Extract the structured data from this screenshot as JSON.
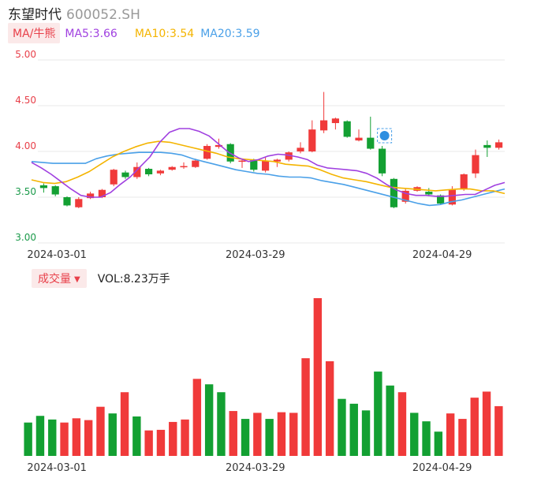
{
  "header": {
    "name": "东望时代",
    "code": "600052.SH"
  },
  "indicators": {
    "badge": "MA/牛熊",
    "ma5": "MA5:3.66",
    "ma10": "MA10:3.54",
    "ma20": "MA20:3.59",
    "colors": {
      "ma5": "#a040e0",
      "ma10": "#f4b400",
      "ma20": "#4aa0e8"
    }
  },
  "volume_header": {
    "badge": "成交量",
    "caret": "▼",
    "text": "VOL:8.23万手"
  },
  "colors": {
    "up": "#f03a3a",
    "down": "#13a032",
    "grid": "#e8e8e8"
  },
  "chart_data": [
    {
      "type": "candlestick",
      "ylim": [
        3.0,
        5.0
      ],
      "yticks": [
        "5.00",
        "4.50",
        "4.00",
        "3.50",
        "3.00"
      ],
      "xticks": [
        {
          "label": "2024-03-01",
          "index": 1
        },
        {
          "label": "2024-03-29",
          "index": 18
        },
        {
          "label": "2024-04-29",
          "index": 34
        }
      ],
      "candles": [
        {
          "o": 3.63,
          "c": 3.6,
          "h": 3.65,
          "l": 3.55
        },
        {
          "o": 3.62,
          "c": 3.53,
          "h": 3.63,
          "l": 3.51
        },
        {
          "o": 3.5,
          "c": 3.41,
          "h": 3.51,
          "l": 3.4
        },
        {
          "o": 3.39,
          "c": 3.48,
          "h": 3.5,
          "l": 3.38
        },
        {
          "o": 3.49,
          "c": 3.54,
          "h": 3.56,
          "l": 3.48
        },
        {
          "o": 3.5,
          "c": 3.58,
          "h": 3.59,
          "l": 3.49
        },
        {
          "o": 3.64,
          "c": 3.8,
          "h": 3.81,
          "l": 3.62
        },
        {
          "o": 3.77,
          "c": 3.72,
          "h": 3.79,
          "l": 3.7
        },
        {
          "o": 3.72,
          "c": 3.83,
          "h": 3.88,
          "l": 3.7
        },
        {
          "o": 3.81,
          "c": 3.75,
          "h": 3.82,
          "l": 3.73
        },
        {
          "o": 3.76,
          "c": 3.79,
          "h": 3.8,
          "l": 3.74
        },
        {
          "o": 3.8,
          "c": 3.83,
          "h": 3.84,
          "l": 3.79
        },
        {
          "o": 3.83,
          "c": 3.84,
          "h": 3.88,
          "l": 3.81
        },
        {
          "o": 3.83,
          "c": 3.9,
          "h": 3.92,
          "l": 3.82
        },
        {
          "o": 3.92,
          "c": 4.06,
          "h": 4.08,
          "l": 3.91
        },
        {
          "o": 4.05,
          "c": 4.07,
          "h": 4.14,
          "l": 4.03
        },
        {
          "o": 4.08,
          "c": 3.89,
          "h": 4.09,
          "l": 3.87
        },
        {
          "o": 3.89,
          "c": 3.9,
          "h": 3.92,
          "l": 3.82
        },
        {
          "o": 3.91,
          "c": 3.8,
          "h": 3.92,
          "l": 3.78
        },
        {
          "o": 3.79,
          "c": 3.9,
          "h": 3.94,
          "l": 3.77
        },
        {
          "o": 3.89,
          "c": 3.91,
          "h": 3.92,
          "l": 3.83
        },
        {
          "o": 3.91,
          "c": 3.99,
          "h": 4.0,
          "l": 3.89
        },
        {
          "o": 4.0,
          "c": 4.04,
          "h": 4.1,
          "l": 3.98
        },
        {
          "o": 4.0,
          "c": 4.24,
          "h": 4.34,
          "l": 3.99
        },
        {
          "o": 4.23,
          "c": 4.34,
          "h": 4.65,
          "l": 4.2
        },
        {
          "o": 4.31,
          "c": 4.36,
          "h": 4.37,
          "l": 4.24
        },
        {
          "o": 4.33,
          "c": 4.16,
          "h": 4.34,
          "l": 4.15
        },
        {
          "o": 4.12,
          "c": 4.15,
          "h": 4.24,
          "l": 4.11
        },
        {
          "o": 4.15,
          "c": 4.03,
          "h": 4.38,
          "l": 4.02
        },
        {
          "o": 4.03,
          "c": 3.76,
          "h": 4.06,
          "l": 3.73
        },
        {
          "o": 3.7,
          "c": 3.39,
          "h": 3.71,
          "l": 3.38
        },
        {
          "o": 3.45,
          "c": 3.57,
          "h": 3.59,
          "l": 3.43
        },
        {
          "o": 3.57,
          "c": 3.61,
          "h": 3.62,
          "l": 3.56
        },
        {
          "o": 3.56,
          "c": 3.53,
          "h": 3.6,
          "l": 3.51
        },
        {
          "o": 3.52,
          "c": 3.43,
          "h": 3.53,
          "l": 3.42
        },
        {
          "o": 3.42,
          "c": 3.58,
          "h": 3.62,
          "l": 3.41
        },
        {
          "o": 3.59,
          "c": 3.75,
          "h": 3.76,
          "l": 3.57
        },
        {
          "o": 3.76,
          "c": 3.96,
          "h": 4.02,
          "l": 3.71
        },
        {
          "o": 4.07,
          "c": 4.04,
          "h": 4.12,
          "l": 3.94
        },
        {
          "o": 4.04,
          "c": 4.1,
          "h": 4.13,
          "l": 4.02
        }
      ],
      "ma5": [
        3.88,
        3.82,
        3.75,
        3.67,
        3.59,
        3.52,
        3.5,
        3.5,
        3.55,
        3.64,
        3.72,
        3.83,
        3.94,
        4.1,
        4.21,
        4.25,
        4.25,
        4.22,
        4.17,
        4.08,
        3.99,
        3.93,
        3.89,
        3.91,
        3.95,
        3.97,
        3.96,
        3.94,
        3.91,
        3.85,
        3.82,
        3.81,
        3.8,
        3.79,
        3.76,
        3.71,
        3.64,
        3.58,
        3.54,
        3.52,
        3.52,
        3.51,
        3.51,
        3.52,
        3.53,
        3.53,
        3.58,
        3.63,
        3.66
      ],
      "ma10": [
        3.69,
        3.66,
        3.65,
        3.67,
        3.72,
        3.78,
        3.86,
        3.94,
        4.0,
        4.05,
        4.09,
        4.11,
        4.1,
        4.07,
        4.04,
        4.01,
        3.98,
        3.94,
        3.92,
        3.91,
        3.9,
        3.89,
        3.86,
        3.85,
        3.84,
        3.8,
        3.75,
        3.71,
        3.69,
        3.67,
        3.64,
        3.61,
        3.6,
        3.59,
        3.58,
        3.57,
        3.58,
        3.59,
        3.59,
        3.57,
        3.57,
        3.54
      ],
      "ma20": [
        3.89,
        3.88,
        3.87,
        3.87,
        3.87,
        3.87,
        3.92,
        3.95,
        3.97,
        3.98,
        3.99,
        3.99,
        3.99,
        3.98,
        3.96,
        3.92,
        3.89,
        3.86,
        3.83,
        3.8,
        3.78,
        3.76,
        3.75,
        3.73,
        3.72,
        3.72,
        3.71,
        3.68,
        3.66,
        3.64,
        3.61,
        3.58,
        3.55,
        3.52,
        3.49,
        3.46,
        3.43,
        3.41,
        3.42,
        3.45,
        3.47,
        3.5,
        3.53,
        3.56,
        3.59
      ]
    },
    {
      "type": "bar",
      "name": "成交量",
      "xticks": [
        {
          "label": "2024-03-01",
          "index": 1
        },
        {
          "label": "2024-03-29",
          "index": 18
        },
        {
          "label": "2024-04-29",
          "index": 34
        }
      ],
      "ylim": [
        0,
        26
      ],
      "values": [
        5.5,
        6.6,
        6.0,
        5.5,
        6.2,
        5.9,
        8.1,
        7.0,
        10.5,
        6.5,
        4.2,
        4.3,
        5.6,
        6.0,
        12.7,
        11.8,
        10.5,
        7.4,
        6.1,
        7.1,
        6.1,
        7.2,
        7.1,
        16.1,
        26.0,
        15.6,
        9.4,
        8.6,
        7.5,
        13.9,
        11.6,
        10.5,
        7.1,
        5.7,
        4.0,
        7.0,
        6.1,
        9.6,
        10.6,
        8.2
      ],
      "up": [
        false,
        false,
        false,
        true,
        true,
        true,
        true,
        false,
        true,
        false,
        true,
        true,
        true,
        true,
        true,
        false,
        false,
        true,
        false,
        true,
        false,
        true,
        true,
        true,
        true,
        true,
        false,
        false,
        false,
        false,
        false,
        true,
        false,
        false,
        false,
        true,
        true,
        true,
        true,
        true
      ]
    }
  ]
}
